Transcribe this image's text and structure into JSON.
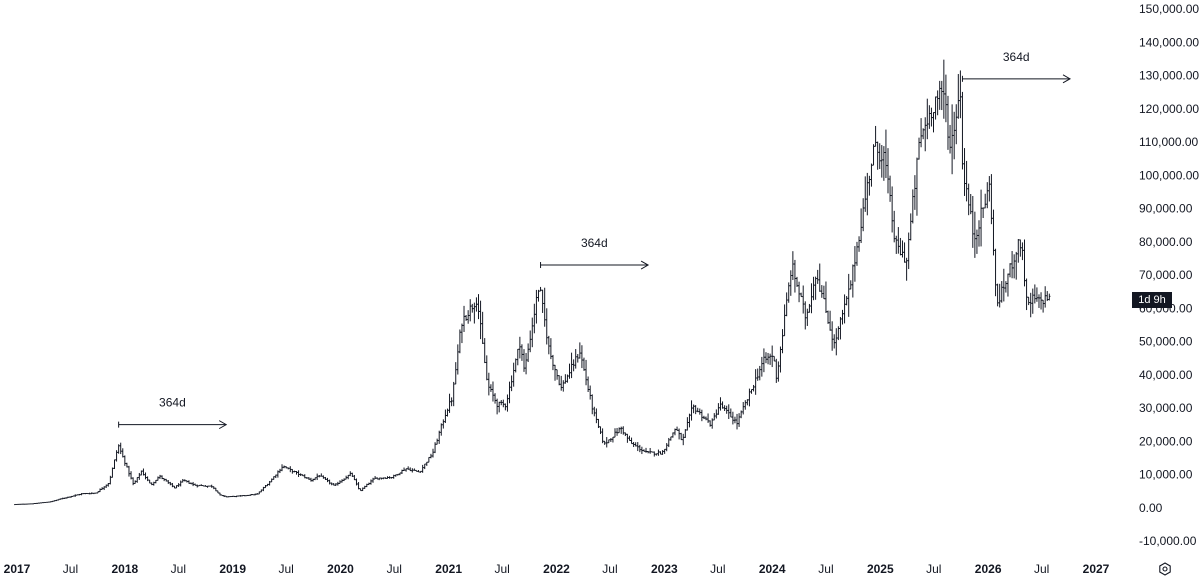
{
  "chart_data": {
    "type": "ohlc",
    "series_name": "",
    "bar_interval": "weekly",
    "color": "#131722",
    "x_range": [
      "2017-01-01",
      "2027-04-01"
    ],
    "ylim": [
      -13000,
      153000
    ],
    "yticks": [
      -10000,
      0,
      10000,
      20000,
      30000,
      40000,
      50000,
      60000,
      70000,
      80000,
      90000,
      100000,
      110000,
      120000,
      130000,
      140000,
      150000
    ],
    "ytick_labels": [
      "-10,000.00",
      "0.00",
      "10,000.00",
      "20,000.00",
      "30,000.00",
      "40,000.00",
      "50,000.00",
      "60,000.00",
      "70,000.00",
      "80,000.00",
      "90,000.00",
      "100,000.00",
      "110,000.00",
      "120,000.00",
      "130,000.00",
      "140,000.00",
      "150,000.00"
    ],
    "xticks": [
      {
        "date": "2017-01-01",
        "label": "2017",
        "major": true
      },
      {
        "date": "2017-07-01",
        "label": "Jul",
        "major": false
      },
      {
        "date": "2018-01-01",
        "label": "2018",
        "major": true
      },
      {
        "date": "2018-07-01",
        "label": "Jul",
        "major": false
      },
      {
        "date": "2019-01-01",
        "label": "2019",
        "major": true
      },
      {
        "date": "2019-07-01",
        "label": "Jul",
        "major": false
      },
      {
        "date": "2020-01-01",
        "label": "2020",
        "major": true
      },
      {
        "date": "2020-07-01",
        "label": "Jul",
        "major": false
      },
      {
        "date": "2021-01-01",
        "label": "2021",
        "major": true
      },
      {
        "date": "2021-07-01",
        "label": "Jul",
        "major": false
      },
      {
        "date": "2022-01-01",
        "label": "2022",
        "major": true
      },
      {
        "date": "2022-07-01",
        "label": "Jul",
        "major": false
      },
      {
        "date": "2023-01-01",
        "label": "2023",
        "major": true
      },
      {
        "date": "2023-07-01",
        "label": "Jul",
        "major": false
      },
      {
        "date": "2024-01-01",
        "label": "2024",
        "major": true
      },
      {
        "date": "2024-07-01",
        "label": "Jul",
        "major": false
      },
      {
        "date": "2025-01-01",
        "label": "2025",
        "major": true
      },
      {
        "date": "2025-07-01",
        "label": "Jul",
        "major": false
      },
      {
        "date": "2026-01-01",
        "label": "2026",
        "major": true
      },
      {
        "date": "2026-07-01",
        "label": "Jul",
        "major": false
      },
      {
        "date": "2027-01-01",
        "label": "2027",
        "major": true
      }
    ],
    "price_path": [
      [
        "2016-12-26",
        950
      ],
      [
        "2017-03-01",
        1200
      ],
      [
        "2017-05-01",
        1800
      ],
      [
        "2017-06-10",
        2800
      ],
      [
        "2017-08-15",
        4200
      ],
      [
        "2017-10-01",
        4400
      ],
      [
        "2017-11-15",
        7500
      ],
      [
        "2017-12-17",
        18800
      ],
      [
        "2018-01-15",
        12000
      ],
      [
        "2018-02-06",
        7000
      ],
      [
        "2018-03-05",
        11000
      ],
      [
        "2018-04-06",
        6800
      ],
      [
        "2018-05-05",
        9500
      ],
      [
        "2018-06-25",
        6000
      ],
      [
        "2018-07-25",
        8200
      ],
      [
        "2018-09-01",
        6800
      ],
      [
        "2018-11-01",
        6400
      ],
      [
        "2018-11-25",
        3800
      ],
      [
        "2018-12-15",
        3300
      ],
      [
        "2019-02-01",
        3500
      ],
      [
        "2019-04-01",
        4100
      ],
      [
        "2019-05-15",
        8000
      ],
      [
        "2019-06-26",
        12500
      ],
      [
        "2019-08-15",
        10300
      ],
      [
        "2019-10-01",
        8200
      ],
      [
        "2019-10-26",
        9800
      ],
      [
        "2019-12-17",
        6600
      ],
      [
        "2020-02-13",
        10300
      ],
      [
        "2020-03-13",
        5000
      ],
      [
        "2020-05-01",
        8800
      ],
      [
        "2020-07-01",
        9200
      ],
      [
        "2020-08-15",
        11800
      ],
      [
        "2020-10-01",
        10700
      ],
      [
        "2020-11-15",
        16500
      ],
      [
        "2020-12-31",
        29000
      ],
      [
        "2021-01-20",
        33000
      ],
      [
        "2021-02-21",
        56000
      ],
      [
        "2021-04-14",
        63000
      ],
      [
        "2021-05-19",
        37000
      ],
      [
        "2021-06-22",
        31000
      ],
      [
        "2021-07-20",
        31000
      ],
      [
        "2021-09-07",
        50000
      ],
      [
        "2021-09-21",
        41000
      ],
      [
        "2021-11-10",
        67000
      ],
      [
        "2021-12-15",
        47000
      ],
      [
        "2022-01-24",
        36000
      ],
      [
        "2022-03-28",
        47000
      ],
      [
        "2022-05-12",
        29000
      ],
      [
        "2022-06-18",
        19000
      ],
      [
        "2022-08-14",
        24000
      ],
      [
        "2022-09-15",
        19500
      ],
      [
        "2022-11-09",
        16500
      ],
      [
        "2022-12-31",
        16500
      ],
      [
        "2023-02-15",
        24000
      ],
      [
        "2023-03-10",
        20000
      ],
      [
        "2023-04-14",
        30500
      ],
      [
        "2023-06-15",
        25000
      ],
      [
        "2023-07-14",
        31000
      ],
      [
        "2023-09-11",
        25500
      ],
      [
        "2023-10-25",
        34500
      ],
      [
        "2023-12-08",
        44000
      ],
      [
        "2024-01-11",
        46000
      ],
      [
        "2024-01-23",
        39000
      ],
      [
        "2024-03-14",
        73000
      ],
      [
        "2024-05-01",
        57000
      ],
      [
        "2024-06-05",
        71000
      ],
      [
        "2024-08-05",
        49000
      ],
      [
        "2024-09-27",
        66000
      ],
      [
        "2024-11-12",
        90000
      ],
      [
        "2024-12-17",
        108000
      ],
      [
        "2025-01-21",
        106000
      ],
      [
        "2025-02-28",
        79000
      ],
      [
        "2025-04-07",
        74500
      ],
      [
        "2025-05-22",
        111000
      ],
      [
        "2025-07-14",
        123000
      ],
      [
        "2025-08-14",
        124000
      ],
      [
        "2025-09-01",
        108000
      ],
      [
        "2025-10-06",
        126000
      ],
      [
        "2025-10-10",
        105000
      ],
      [
        "2025-11-21",
        81000
      ],
      [
        "2025-12-15",
        88000
      ],
      [
        "2026-01-14",
        97000
      ],
      [
        "2026-02-05",
        61000
      ],
      [
        "2026-03-01",
        66000
      ],
      [
        "2026-04-15",
        78000
      ],
      [
        "2026-05-01",
        80000
      ],
      [
        "2026-05-20",
        60000
      ],
      [
        "2026-06-10",
        63000
      ],
      [
        "2026-07-01",
        62000
      ],
      [
        "2026-08-01",
        63500
      ]
    ],
    "last_value": 63500,
    "annotations": [
      {
        "id": "anno-2018",
        "label": "364d",
        "from": [
          "2017-12-11",
          25000
        ],
        "to": [
          "2018-12-10",
          25000
        ]
      },
      {
        "id": "anno-2022",
        "label": "364d",
        "from": [
          "2021-11-08",
          73000
        ],
        "to": [
          "2022-11-07",
          73000
        ]
      },
      {
        "id": "anno-2026",
        "label": "364d",
        "from": [
          "2025-10-06",
          129000
        ],
        "to": [
          "2026-10-05",
          129000
        ]
      }
    ]
  },
  "countdown_badge": "1d 9h",
  "settings_icon": "settings-icon"
}
